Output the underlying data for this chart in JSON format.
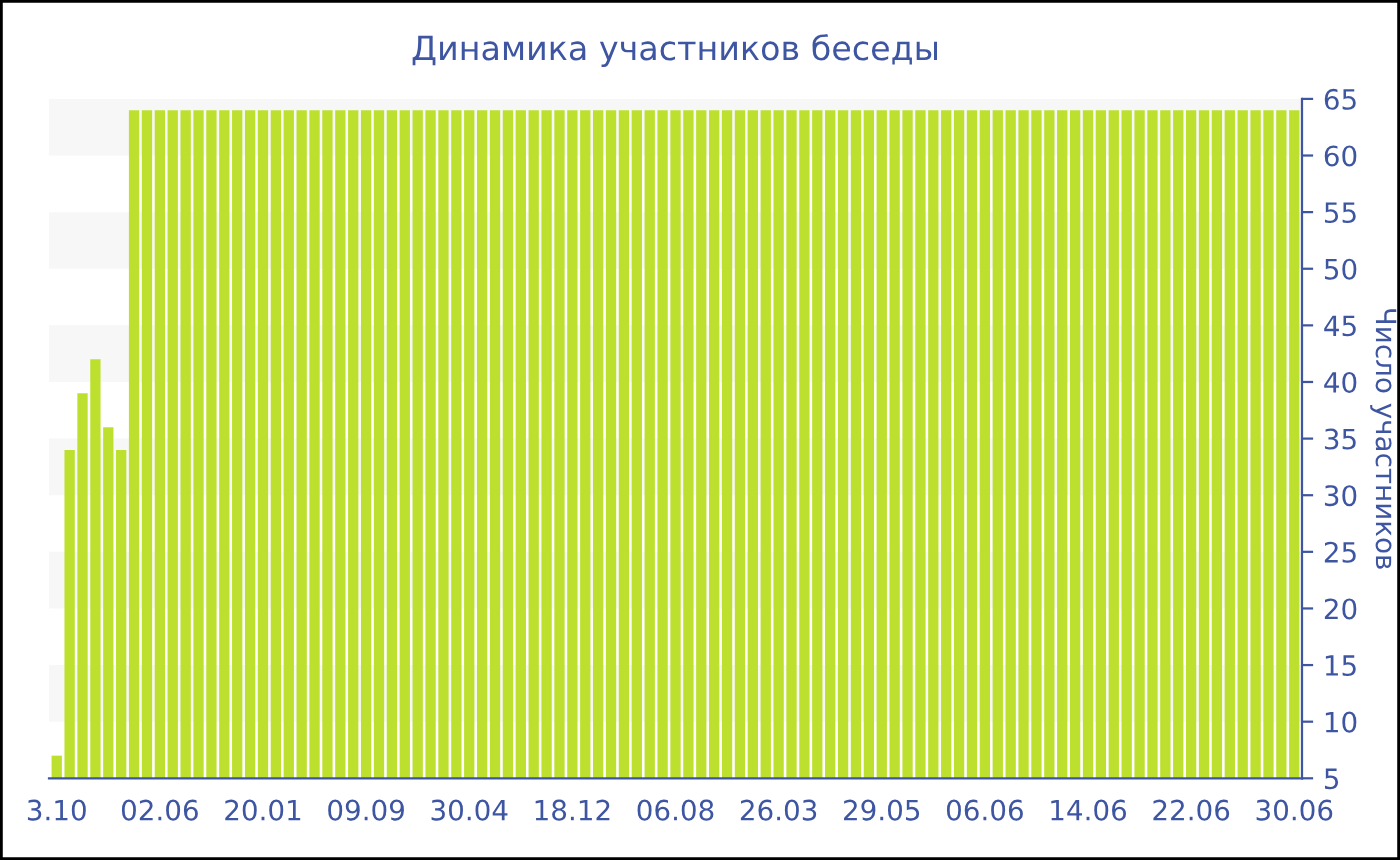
{
  "chart_data": {
    "type": "bar",
    "title": "Динамика участников беседы",
    "ylabel": "Число участников",
    "categories": [
      "3.10",
      null,
      null,
      null,
      null,
      null,
      null,
      null,
      "02.06",
      null,
      null,
      null,
      null,
      null,
      null,
      null,
      "20.01",
      null,
      null,
      null,
      null,
      null,
      null,
      null,
      "09.09",
      null,
      null,
      null,
      null,
      null,
      null,
      null,
      "30.04",
      null,
      null,
      null,
      null,
      null,
      null,
      null,
      "18.12",
      null,
      null,
      null,
      null,
      null,
      null,
      null,
      "06.08",
      null,
      null,
      null,
      null,
      null,
      null,
      null,
      "26.03",
      null,
      null,
      null,
      null,
      null,
      null,
      null,
      "29.05",
      null,
      null,
      null,
      null,
      null,
      null,
      null,
      "06.06",
      null,
      null,
      null,
      null,
      null,
      null,
      null,
      "14.06",
      null,
      null,
      null,
      null,
      null,
      null,
      null,
      "22.06",
      null,
      null,
      null,
      null,
      null,
      null,
      null,
      "30.06"
    ],
    "values": [
      7,
      34,
      39,
      42,
      36,
      34,
      64,
      64,
      64,
      64,
      64,
      64,
      64,
      64,
      64,
      64,
      64,
      64,
      64,
      64,
      64,
      64,
      64,
      64,
      64,
      64,
      64,
      64,
      64,
      64,
      64,
      64,
      64,
      64,
      64,
      64,
      64,
      64,
      64,
      64,
      64,
      64,
      64,
      64,
      64,
      64,
      64,
      64,
      64,
      64,
      64,
      64,
      64,
      64,
      64,
      64,
      64,
      64,
      64,
      64,
      64,
      64,
      64,
      64,
      64,
      64,
      64,
      64,
      64,
      64,
      64,
      64,
      64,
      64,
      64,
      64,
      64,
      64,
      64,
      64,
      64,
      64,
      64,
      64,
      64,
      64,
      64,
      64,
      64,
      64,
      64,
      64,
      64,
      64,
      64,
      64,
      64
    ],
    "color": "#bde02e",
    "ylim": [
      5,
      65
    ],
    "yticks": [
      5,
      10,
      15,
      20,
      25,
      30,
      35,
      40,
      45,
      50,
      55,
      60,
      65
    ],
    "bands": [
      {
        "axis": "y",
        "from": 10,
        "to": 15,
        "color": "#f7f7f7"
      },
      {
        "axis": "y",
        "from": 20,
        "to": 25,
        "color": "#f7f7f7"
      },
      {
        "axis": "y",
        "from": 30,
        "to": 35,
        "color": "#f7f7f7"
      },
      {
        "axis": "y",
        "from": 40,
        "to": 45,
        "color": "#f7f7f7"
      },
      {
        "axis": "y",
        "from": 50,
        "to": 55,
        "color": "#f7f7f7"
      },
      {
        "axis": "y",
        "from": 60,
        "to": 65,
        "color": "#f7f7f7"
      }
    ],
    "grid": false,
    "legend": false
  }
}
